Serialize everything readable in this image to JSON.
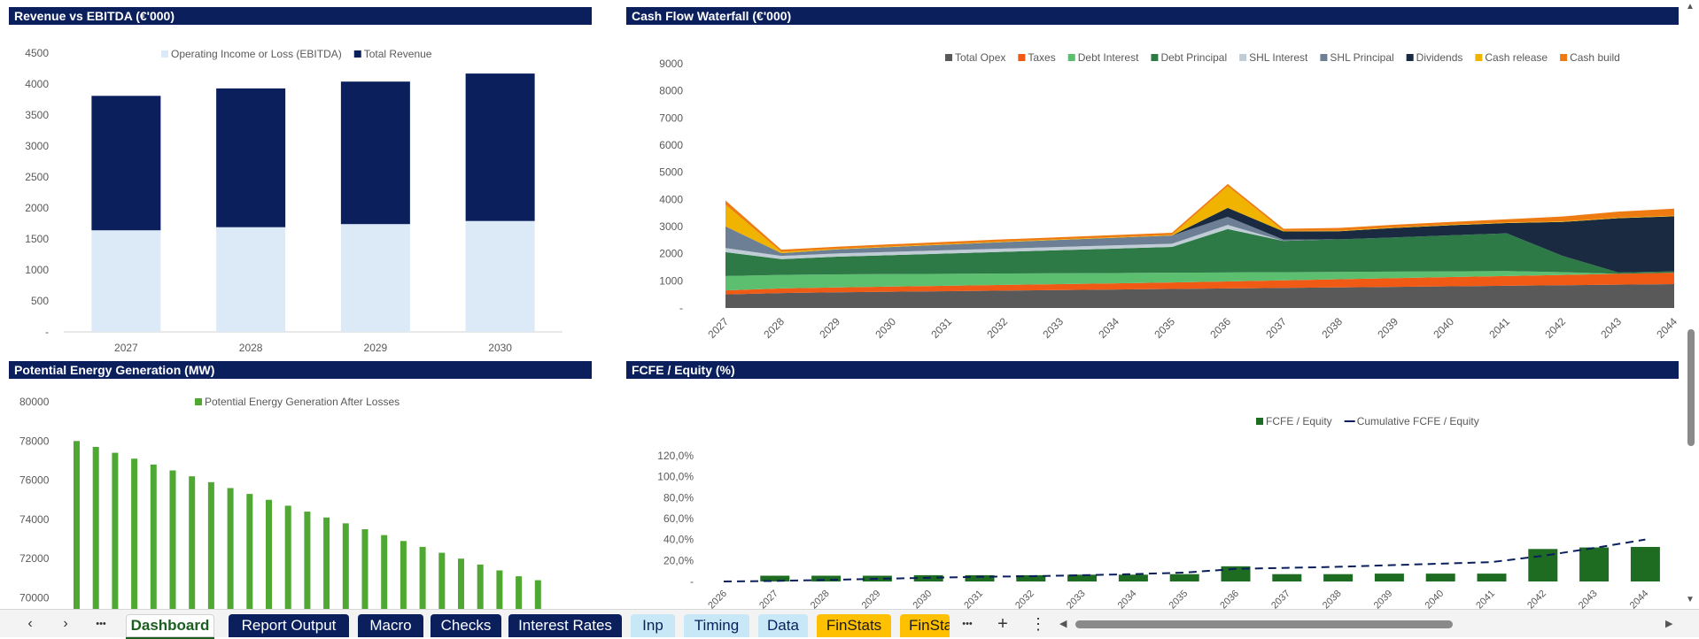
{
  "panels": {
    "revenue": {
      "title": "Revenue vs EBITDA  (€'000)",
      "legend": [
        "Operating Income or Loss (EBITDA)",
        "Total Revenue"
      ],
      "colors": {
        "ebitda": "#dce9f7",
        "revenue": "#0a1f5c"
      }
    },
    "waterfall": {
      "title": "Cash Flow Waterfall (€'000)",
      "legend": [
        "Total Opex",
        "Taxes",
        "Debt Interest",
        "Debt Principal",
        "SHL Interest",
        "SHL Principal",
        "Dividends",
        "Cash release",
        "Cash build"
      ]
    },
    "energy": {
      "title": "Potential Energy Generation (MW)",
      "legend": [
        "Potential Energy Generation After Losses"
      ],
      "color": "#4fa832"
    },
    "fcfe": {
      "title": "FCFE / Equity  (%)",
      "legend": [
        "FCFE / Equity",
        "Cumulative FCFE / Equity"
      ]
    }
  },
  "chart_data": [
    {
      "type": "bar",
      "title": "Revenue vs EBITDA  (€'000)",
      "categories": [
        "2027",
        "2028",
        "2029",
        "2030"
      ],
      "series": [
        {
          "name": "Operating Income or Loss (EBITDA)",
          "values": [
            1640,
            1690,
            1740,
            1790
          ]
        },
        {
          "name": "Total Revenue",
          "values": [
            3810,
            3930,
            4040,
            4170
          ]
        }
      ],
      "yticks": [
        "-",
        "500",
        "1000",
        "1500",
        "2000",
        "2500",
        "3000",
        "3500",
        "4000",
        "4500"
      ],
      "ylim": [
        0,
        4500
      ],
      "legend_position": "top"
    },
    {
      "type": "area",
      "title": "Cash Flow Waterfall (€'000)",
      "categories": [
        "2027",
        "2028",
        "2029",
        "2030",
        "2031",
        "2032",
        "2033",
        "2034",
        "2035",
        "2036",
        "2037",
        "2038",
        "2039",
        "2040",
        "2041",
        "2042",
        "2043",
        "2044"
      ],
      "series": [
        {
          "name": "Total Opex",
          "color": "#595959",
          "values": [
            500,
            550,
            580,
            600,
            620,
            640,
            660,
            680,
            700,
            720,
            740,
            760,
            780,
            800,
            820,
            840,
            860,
            880
          ]
        },
        {
          "name": "Taxes",
          "color": "#f05a14",
          "values": [
            150,
            170,
            180,
            190,
            200,
            210,
            220,
            230,
            240,
            260,
            280,
            300,
            320,
            340,
            360,
            380,
            400,
            420
          ]
        },
        {
          "name": "Debt Interest",
          "color": "#5cbf70",
          "values": [
            530,
            500,
            480,
            460,
            440,
            420,
            400,
            380,
            360,
            330,
            300,
            270,
            240,
            210,
            180,
            100,
            0,
            0
          ]
        },
        {
          "name": "Debt Principal",
          "color": "#2e7a47",
          "values": [
            880,
            580,
            650,
            700,
            750,
            800,
            850,
            900,
            950,
            1600,
            1150,
            1200,
            1260,
            1330,
            1390,
            600,
            50,
            50
          ]
        },
        {
          "name": "SHL Interest",
          "color": "#c0ccd6",
          "values": [
            150,
            120,
            120,
            120,
            120,
            120,
            120,
            120,
            120,
            150,
            0,
            0,
            0,
            0,
            0,
            0,
            0,
            0
          ]
        },
        {
          "name": "SHL Principal",
          "color": "#6d7f94",
          "values": [
            800,
            100,
            150,
            180,
            210,
            240,
            260,
            280,
            300,
            300,
            50,
            0,
            0,
            0,
            0,
            0,
            0,
            0
          ]
        },
        {
          "name": "Dividends",
          "color": "#1a2a40",
          "values": [
            0,
            0,
            0,
            0,
            0,
            0,
            0,
            0,
            0,
            330,
            300,
            300,
            350,
            370,
            380,
            1250,
            2000,
            2030
          ]
        },
        {
          "name": "Cash release",
          "color": "#f0b400",
          "values": [
            800,
            50,
            20,
            20,
            20,
            20,
            20,
            20,
            20,
            800,
            20,
            20,
            20,
            20,
            20,
            20,
            20,
            20
          ]
        },
        {
          "name": "Cash build",
          "color": "#ee7b12",
          "values": [
            150,
            80,
            80,
            80,
            80,
            80,
            80,
            80,
            80,
            80,
            80,
            100,
            100,
            100,
            120,
            180,
            220,
            260
          ]
        }
      ],
      "yticks": [
        "-",
        "1000",
        "2000",
        "3000",
        "4000",
        "5000",
        "6000",
        "7000",
        "8000",
        "9000"
      ],
      "ylim": [
        0,
        9000
      ],
      "legend_position": "top"
    },
    {
      "type": "bar",
      "title": "Potential Energy Generation (MW)",
      "series": [
        {
          "name": "Potential Energy Generation After Losses",
          "values": [
            78000,
            77700,
            77400,
            77100,
            76800,
            76500,
            76200,
            75900,
            75600,
            75300,
            75000,
            74700,
            74400,
            74100,
            73800,
            73500,
            73200,
            72900,
            72600,
            72300,
            72000,
            71700,
            71400,
            71100,
            70900
          ]
        }
      ],
      "yticks": [
        "70000",
        "72000",
        "74000",
        "76000",
        "78000",
        "80000"
      ],
      "ylim": [
        70000,
        80000
      ],
      "legend_position": "top"
    },
    {
      "type": "bar",
      "title": "FCFE / Equity  (%)",
      "categories": [
        "2026",
        "2027",
        "2028",
        "2029",
        "2030",
        "2031",
        "2032",
        "2033",
        "2034",
        "2035",
        "2036",
        "2037",
        "2038",
        "2039",
        "2040",
        "2041",
        "2042",
        "2043",
        "2044"
      ],
      "series": [
        {
          "name": "FCFE / Equity",
          "type": "bar",
          "color": "#1e6b22",
          "values": [
            0,
            5.5,
            5.5,
            5.5,
            6,
            6,
            6,
            6.5,
            6.5,
            7,
            14.5,
            7,
            7,
            7.5,
            7.5,
            7.5,
            31,
            32.5,
            33
          ]
        },
        {
          "name": "Cumulative FCFE / Equity",
          "type": "line",
          "color": "#0a1f5c",
          "values": [
            0,
            0.5,
            1.5,
            2.5,
            3.5,
            4.5,
            5,
            6,
            7,
            8.5,
            12,
            13,
            14,
            15.5,
            17,
            18.5,
            24.5,
            32,
            40
          ]
        }
      ],
      "yticks": [
        "-",
        "20,0%",
        "40,0%",
        "60,0%",
        "80,0%",
        "100,0%",
        "120,0%"
      ],
      "ylim": [
        0,
        120
      ],
      "legend_position": "top"
    }
  ],
  "tabbar": {
    "nav": [
      "‹",
      "›",
      "•••"
    ],
    "tabs": [
      {
        "label": "Dashboard",
        "style": "active"
      },
      {
        "label": "Report Output",
        "style": "navy"
      },
      {
        "label": "Macro",
        "style": "navy"
      },
      {
        "label": "Checks",
        "style": "navy"
      },
      {
        "label": "Interest Rates",
        "style": "navy"
      },
      {
        "label": "Inp",
        "style": "light"
      },
      {
        "label": "Timing",
        "style": "light"
      },
      {
        "label": "Data",
        "style": "light"
      },
      {
        "label": "FinStats",
        "style": "gold"
      },
      {
        "label": "FinSta",
        "style": "gold"
      }
    ],
    "more": "•••",
    "add": "+",
    "menu": "⋮",
    "scroll_left": "◀",
    "scroll_right": "▶"
  },
  "vscroll": {
    "up": "▲",
    "down": "▼"
  }
}
